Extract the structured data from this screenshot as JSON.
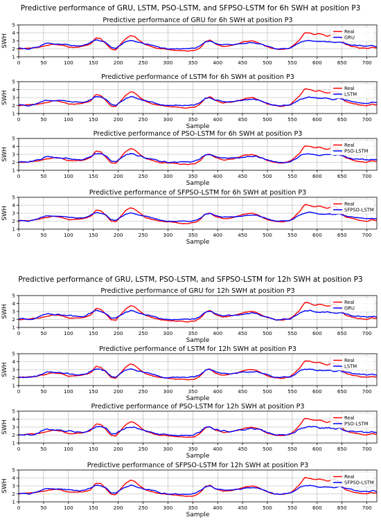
{
  "figure": {
    "group_titles": [
      "Predictive performance of GRU, LSTM, PSO-LSTM, and SFPSO-LSTM for 6h SWH at position P3",
      "Predictive performance of GRU, LSTM, PSO-LSTM, and SFPSO-LSTM for 12h SWH at position P3"
    ],
    "colors": {
      "real": "#ff0000",
      "pred": "#0000ff",
      "grid": "#b0b0b0"
    }
  },
  "chart_data": [
    {
      "type": "line",
      "title": "Predictive performance of GRU for 6h SWH at position P3",
      "xlabel": "Sample",
      "ylabel": "SWH",
      "xlim": [
        0,
        720
      ],
      "ylim": [
        1,
        5
      ],
      "xticks": [
        0,
        50,
        100,
        150,
        200,
        250,
        300,
        350,
        400,
        450,
        500,
        550,
        600,
        650,
        700
      ],
      "yticks": [
        1,
        2,
        3,
        4,
        5
      ],
      "grid": true,
      "legend": "top-right",
      "series": [
        {
          "name": "Real",
          "color": "#ff0000"
        },
        {
          "name": "GRU",
          "color": "#0000ff"
        }
      ],
      "noise": 0.1,
      "seed": 11,
      "show_xlabel": false
    },
    {
      "type": "line",
      "title": "Predictive performance of LSTM for 6h SWH at position P3",
      "xlabel": "Sample",
      "ylabel": "SWH",
      "xlim": [
        0,
        720
      ],
      "ylim": [
        1,
        5
      ],
      "xticks": [
        0,
        50,
        100,
        150,
        200,
        250,
        300,
        350,
        400,
        450,
        500,
        550,
        600,
        650,
        700
      ],
      "yticks": [
        1,
        2,
        3,
        4,
        5
      ],
      "grid": true,
      "legend": "top-right",
      "series": [
        {
          "name": "Real",
          "color": "#ff0000"
        },
        {
          "name": "LSTM",
          "color": "#0000ff"
        }
      ],
      "noise": 0.12,
      "seed": 23,
      "show_xlabel": true
    },
    {
      "type": "line",
      "title": "Predictive performance of PSO-LSTM for 6h SWH at position P3",
      "xlabel": "Sample",
      "ylabel": "SWH",
      "xlim": [
        0,
        720
      ],
      "ylim": [
        1,
        5
      ],
      "xticks": [
        0,
        50,
        100,
        150,
        200,
        250,
        300,
        350,
        400,
        450,
        500,
        550,
        600,
        650,
        700
      ],
      "yticks": [
        1,
        2,
        3,
        4,
        5
      ],
      "grid": true,
      "legend": "top-right",
      "series": [
        {
          "name": "Real",
          "color": "#ff0000"
        },
        {
          "name": "PSO-LSTM",
          "color": "#0000ff"
        }
      ],
      "noise": 0.16,
      "seed": 37,
      "show_xlabel": true
    },
    {
      "type": "line",
      "title": "Predictive performance of SFPSO-LSTM for 6h SWH at position P3",
      "xlabel": "Sample",
      "ylabel": "SWH",
      "xlim": [
        0,
        720
      ],
      "ylim": [
        1,
        5
      ],
      "xticks": [
        0,
        50,
        100,
        150,
        200,
        250,
        300,
        350,
        400,
        450,
        500,
        550,
        600,
        650,
        700
      ],
      "yticks": [
        1,
        2,
        3,
        4,
        5
      ],
      "grid": true,
      "legend": "top-right",
      "series": [
        {
          "name": "Real",
          "color": "#ff0000"
        },
        {
          "name": "SFPSO-LSTM",
          "color": "#0000ff"
        }
      ],
      "noise": 0.09,
      "seed": 41,
      "show_xlabel": true
    },
    {
      "type": "line",
      "title": "Predictive performance of GRU for 12h SWH at position P3",
      "xlabel": "Sample",
      "ylabel": "SWH",
      "xlim": [
        0,
        720
      ],
      "ylim": [
        1,
        5
      ],
      "xticks": [
        0,
        50,
        100,
        150,
        200,
        250,
        300,
        350,
        400,
        450,
        500,
        550,
        600,
        650,
        700
      ],
      "yticks": [
        1,
        2,
        3,
        4,
        5
      ],
      "grid": true,
      "legend": "top-right",
      "series": [
        {
          "name": "Real",
          "color": "#ff0000"
        },
        {
          "name": "GRU",
          "color": "#0000ff"
        }
      ],
      "noise": 0.14,
      "seed": 53,
      "show_xlabel": true
    },
    {
      "type": "line",
      "title": "Predictive performance of LSTM for 12h SWH at position P3",
      "xlabel": "Sample",
      "ylabel": "SWH",
      "xlim": [
        0,
        720
      ],
      "ylim": [
        1,
        5
      ],
      "xticks": [
        0,
        50,
        100,
        150,
        200,
        250,
        300,
        350,
        400,
        450,
        500,
        550,
        600,
        650,
        700
      ],
      "yticks": [
        1,
        2,
        3,
        4,
        5
      ],
      "grid": true,
      "legend": "top-right",
      "series": [
        {
          "name": "Real",
          "color": "#ff0000"
        },
        {
          "name": "LSTM",
          "color": "#0000ff"
        }
      ],
      "noise": 0.15,
      "seed": 61,
      "show_xlabel": true
    },
    {
      "type": "line",
      "title": "Predictive performance of PSO-LSTM for 12h SWH at position P3",
      "xlabel": "Sample",
      "ylabel": "SWH",
      "xlim": [
        0,
        720
      ],
      "ylim": [
        1,
        5
      ],
      "xticks": [
        0,
        50,
        100,
        150,
        200,
        250,
        300,
        350,
        400,
        450,
        500,
        550,
        600,
        650,
        700
      ],
      "yticks": [
        1,
        2,
        3,
        4,
        5
      ],
      "grid": true,
      "legend": "top-right",
      "series": [
        {
          "name": "Real",
          "color": "#ff0000"
        },
        {
          "name": "PSO-LSTM",
          "color": "#0000ff"
        }
      ],
      "noise": 0.2,
      "seed": 71,
      "show_xlabel": true
    },
    {
      "type": "line",
      "title": "Predictive performance of SFPSO-LSTM for 12h SWH at position P3",
      "xlabel": "Sample",
      "ylabel": "SWH",
      "xlim": [
        0,
        720
      ],
      "ylim": [
        1,
        5
      ],
      "xticks": [
        0,
        50,
        100,
        150,
        200,
        250,
        300,
        350,
        400,
        450,
        500,
        550,
        600,
        650,
        700
      ],
      "yticks": [
        1,
        2,
        3,
        4,
        5
      ],
      "grid": true,
      "legend": "top-right",
      "series": [
        {
          "name": "Real",
          "color": "#ff0000"
        },
        {
          "name": "SFPSO-LSTM",
          "color": "#0000ff"
        }
      ],
      "noise": 0.12,
      "seed": 83,
      "show_xlabel": true
    }
  ],
  "real_profile": {
    "x": [
      0,
      20,
      40,
      55,
      70,
      85,
      100,
      115,
      130,
      145,
      155,
      165,
      175,
      185,
      195,
      205,
      215,
      225,
      232,
      240,
      255,
      270,
      285,
      300,
      320,
      340,
      355,
      365,
      375,
      385,
      395,
      410,
      425,
      440,
      455,
      470,
      480,
      490,
      500,
      515,
      530,
      545,
      555,
      565,
      575,
      585,
      595,
      605,
      620,
      635,
      645,
      655,
      670,
      685,
      700,
      710,
      720
    ],
    "y": [
      2.0,
      2.1,
      2.2,
      2.4,
      2.6,
      2.5,
      2.2,
      2.2,
      2.3,
      2.6,
      3.4,
      3.3,
      2.7,
      2.0,
      1.9,
      2.6,
      3.3,
      3.7,
      3.6,
      3.2,
      2.5,
      2.2,
      2.0,
      1.9,
      1.8,
      1.7,
      1.8,
      2.2,
      2.9,
      3.1,
      2.6,
      2.3,
      2.4,
      2.6,
      2.9,
      3.0,
      2.8,
      2.5,
      2.2,
      2.0,
      1.9,
      2.1,
      2.6,
      3.2,
      4.1,
      4.0,
      3.8,
      3.9,
      3.6,
      3.9,
      3.5,
      2.6,
      2.3,
      2.1,
      2.0,
      2.2,
      2.1
    ]
  },
  "pred_profile": {
    "x": [
      0,
      20,
      40,
      55,
      70,
      85,
      100,
      115,
      130,
      145,
      155,
      165,
      175,
      185,
      195,
      205,
      215,
      225,
      232,
      240,
      255,
      270,
      285,
      300,
      320,
      340,
      355,
      365,
      375,
      385,
      395,
      410,
      425,
      440,
      455,
      470,
      480,
      490,
      500,
      515,
      530,
      545,
      555,
      565,
      575,
      585,
      595,
      605,
      620,
      635,
      645,
      655,
      670,
      685,
      700,
      710,
      720
    ],
    "y": [
      2.1,
      2.0,
      2.3,
      2.7,
      2.6,
      2.6,
      2.5,
      2.4,
      2.4,
      2.8,
      3.1,
      3.0,
      2.8,
      2.2,
      2.1,
      2.5,
      2.9,
      3.1,
      3.0,
      2.8,
      2.6,
      2.4,
      2.1,
      2.0,
      2.0,
      2.0,
      2.1,
      2.4,
      2.9,
      3.0,
      2.7,
      2.5,
      2.5,
      2.6,
      2.7,
      2.8,
      2.7,
      2.5,
      2.3,
      2.0,
      2.0,
      2.1,
      2.4,
      2.8,
      3.0,
      3.1,
      3.0,
      2.9,
      2.9,
      2.8,
      2.9,
      2.7,
      2.5,
      2.4,
      2.3,
      2.4,
      2.3
    ]
  }
}
